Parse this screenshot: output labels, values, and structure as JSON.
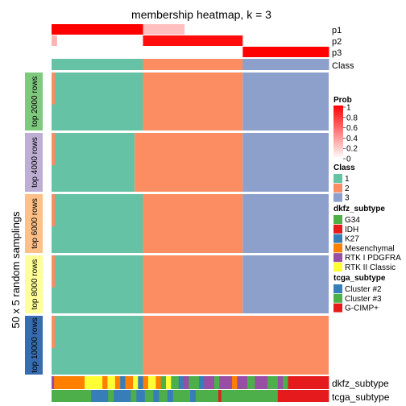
{
  "chart_data": {
    "type": "heatmap",
    "title": "membership heatmap, k = 3",
    "ylabel": "50 x 5 random samplings",
    "colors": {
      "class_1": "#66c2a5",
      "class_2": "#fc8d62",
      "class_3": "#8da0cb",
      "prob_high": "#ff0000",
      "prob_low": "#ffffff"
    },
    "top_rows": [
      "p1",
      "p2",
      "p3",
      "Class"
    ],
    "bottom_rows": [
      "dkfz_subtype",
      "tcga_subtype"
    ],
    "sample_class_fractions": [
      {
        "class": "1",
        "fraction": 0.33
      },
      {
        "class": "2",
        "fraction": 0.36
      },
      {
        "class": "3",
        "fraction": 0.31
      }
    ],
    "probability_fractions": {
      "p1": [
        {
          "start": 0,
          "end": 0.33,
          "value": 1.0
        },
        {
          "start": 0.33,
          "end": 0.48,
          "value": 0.25
        },
        {
          "start": 0.48,
          "end": 1,
          "value": 0.0
        }
      ],
      "p2": [
        {
          "start": 0,
          "end": 0.02,
          "value": 0.3
        },
        {
          "start": 0.02,
          "end": 0.33,
          "value": 0.0
        },
        {
          "start": 0.33,
          "end": 0.69,
          "value": 0.95
        },
        {
          "start": 0.69,
          "end": 1,
          "value": 0.0
        }
      ],
      "p3": [
        {
          "start": 0,
          "end": 0.69,
          "value": 0.0
        },
        {
          "start": 0.69,
          "end": 1,
          "value": 1.0
        }
      ]
    },
    "row_groups": [
      {
        "label": "top 2000 rows",
        "color": "#7fc97f",
        "class1_end": 0.33,
        "class2_end": 0.69
      },
      {
        "label": "top 4000 rows",
        "color": "#beaed4",
        "class1_end": 0.3,
        "class2_end": 0.69
      },
      {
        "label": "top 6000 rows",
        "color": "#fdc086",
        "class1_end": 0.33,
        "class2_end": 0.69
      },
      {
        "label": "top 8000 rows",
        "color": "#ffff99",
        "class1_end": 0.33,
        "class2_end": 0.69
      },
      {
        "label": "top 10000 rows",
        "color": "#386cb0",
        "class1_end": 0.33,
        "class2_end": 1.0
      }
    ],
    "legend": {
      "prob": {
        "title": "Prob",
        "ticks": [
          "1",
          "0.8",
          "0.6",
          "0.4",
          "0.2",
          "0"
        ]
      },
      "class": {
        "title": "Class",
        "items": [
          {
            "label": "1",
            "color": "#66c2a5"
          },
          {
            "label": "2",
            "color": "#fc8d62"
          },
          {
            "label": "3",
            "color": "#8da0cb"
          }
        ]
      },
      "dkfz_subtype": {
        "title": "dkfz_subtype",
        "items": [
          {
            "label": "G34",
            "color": "#4daf4a"
          },
          {
            "label": "IDH",
            "color": "#e41a1c"
          },
          {
            "label": "K27",
            "color": "#377eb8"
          },
          {
            "label": "Mesenchymal",
            "color": "#ff7f00"
          },
          {
            "label": "RTK I PDGFRA",
            "color": "#984ea3"
          },
          {
            "label": "RTK II Classic",
            "color": "#ffff33"
          }
        ]
      },
      "tcga_subtype": {
        "title": "tcga_subtype",
        "items": [
          {
            "label": "Cluster #2",
            "color": "#377eb8"
          },
          {
            "label": "Cluster #3",
            "color": "#4daf4a"
          },
          {
            "label": "G-CIMP+",
            "color": "#e41a1c"
          }
        ]
      }
    }
  }
}
